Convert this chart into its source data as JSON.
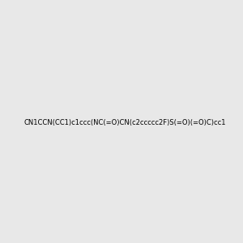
{
  "smiles": "CN1CCN(CC1)c1ccc(NC(=O)CN(c2ccccc2F)S(=O)(=O)C)cc1",
  "image_size": 300,
  "background_color": [
    232,
    232,
    232
  ],
  "atom_colors": {
    "N_piperazine": "#0000cc",
    "N_amide": "#008080",
    "N_central": "#0000cc",
    "O": "#ff0000",
    "S": "#cccc00",
    "F": "#cc00cc"
  }
}
